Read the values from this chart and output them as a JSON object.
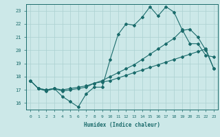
{
  "xlabel": "Humidex (Indice chaleur)",
  "bg_color": "#cce8e8",
  "line_color": "#1a6b6b",
  "grid_color": "#aad0d0",
  "xlim": [
    -0.5,
    23.5
  ],
  "ylim": [
    15.5,
    23.5
  ],
  "yticks": [
    16,
    17,
    18,
    19,
    20,
    21,
    22,
    23
  ],
  "xticks": [
    0,
    1,
    2,
    3,
    4,
    5,
    6,
    7,
    8,
    9,
    10,
    11,
    12,
    13,
    14,
    15,
    16,
    17,
    18,
    19,
    20,
    21,
    22,
    23
  ],
  "line1_x": [
    0,
    1,
    2,
    3,
    4,
    5,
    6,
    7,
    8,
    9,
    10,
    11,
    12,
    13,
    14,
    15,
    16,
    17,
    18,
    19,
    20,
    21,
    22,
    23
  ],
  "line1_y": [
    17.7,
    17.1,
    16.9,
    17.1,
    16.5,
    16.1,
    15.7,
    16.7,
    17.2,
    17.2,
    19.3,
    21.2,
    22.0,
    21.9,
    22.5,
    23.3,
    22.6,
    23.3,
    22.9,
    21.6,
    20.5,
    20.5,
    19.6,
    19.5
  ],
  "line2_x": [
    0,
    1,
    2,
    3,
    4,
    5,
    6,
    7,
    8,
    9,
    10,
    11,
    12,
    13,
    14,
    15,
    16,
    17,
    18,
    19,
    20,
    21,
    22,
    23
  ],
  "line2_y": [
    17.7,
    17.1,
    17.0,
    17.1,
    16.9,
    17.0,
    17.1,
    17.2,
    17.5,
    17.7,
    18.0,
    18.3,
    18.6,
    18.9,
    19.3,
    19.7,
    20.1,
    20.5,
    20.9,
    21.5,
    21.6,
    21.0,
    20.0,
    18.6
  ],
  "line3_x": [
    0,
    1,
    2,
    3,
    4,
    5,
    6,
    7,
    8,
    9,
    10,
    11,
    12,
    13,
    14,
    15,
    16,
    17,
    18,
    19,
    20,
    21,
    22,
    23
  ],
  "line3_y": [
    17.7,
    17.1,
    17.0,
    17.1,
    17.0,
    17.1,
    17.2,
    17.3,
    17.5,
    17.6,
    17.7,
    17.9,
    18.1,
    18.3,
    18.5,
    18.7,
    18.9,
    19.1,
    19.3,
    19.5,
    19.7,
    19.9,
    20.1,
    18.6
  ]
}
